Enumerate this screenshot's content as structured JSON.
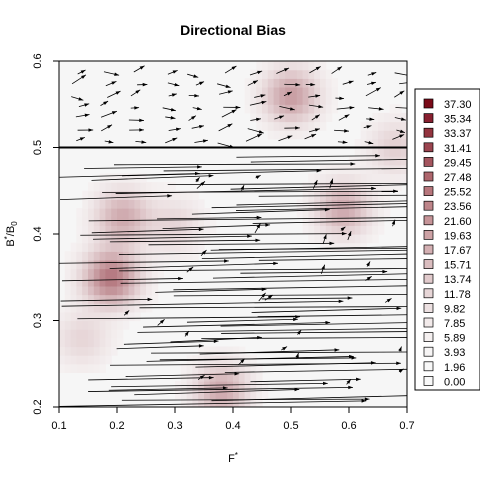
{
  "chart_data": {
    "type": "heatmap",
    "title": "Directional Bias",
    "xlabel": "F*",
    "ylabel": "B*/B0",
    "xlim": [
      0.1,
      0.7
    ],
    "ylim": [
      0.2,
      0.6
    ],
    "x_ticks": [
      "0.1",
      "0.2",
      "0.3",
      "0.4",
      "0.5",
      "0.6",
      "0.7"
    ],
    "y_ticks": [
      "0.2",
      "0.3",
      "0.4",
      "0.5",
      "0.6"
    ],
    "reference_line_y": 0.5,
    "legend": {
      "position": "right",
      "entries": [
        "37.30",
        "35.34",
        "33.37",
        "31.41",
        "29.45",
        "27.48",
        "25.52",
        "23.56",
        "21.60",
        "19.63",
        "17.67",
        "15.71",
        "13.74",
        "11.78",
        "9.82",
        "7.85",
        "5.89",
        "3.93",
        "1.96",
        "0.00"
      ],
      "colors": [
        "#7a0a18",
        "#882030",
        "#93343f",
        "#9b4550",
        "#a4555e",
        "#ae666d",
        "#b7767c",
        "#be858a",
        "#c69498",
        "#cda2a5",
        "#d4b0b3",
        "#dabdbf",
        "#e1cacc",
        "#e7d6d7",
        "#ede1e2",
        "#f2eaea",
        "#f5f0f0",
        "#f7f5f5",
        "#f8f8f8",
        "#f9f9f9"
      ]
    },
    "hotspots": [
      {
        "x": 0.19,
        "y": 0.35,
        "value": 20
      },
      {
        "x": 0.21,
        "y": 0.42,
        "value": 12
      },
      {
        "x": 0.38,
        "y": 0.22,
        "value": 12
      },
      {
        "x": 0.5,
        "y": 0.56,
        "value": 14
      },
      {
        "x": 0.59,
        "y": 0.43,
        "value": 12
      },
      {
        "x": 0.68,
        "y": 0.5,
        "value": 6
      },
      {
        "x": 0.14,
        "y": 0.28,
        "value": 5
      },
      {
        "x": 0.3,
        "y": 0.41,
        "value": 5
      }
    ],
    "vector_field": {
      "upper_region": {
        "y_range": [
          0.5,
          0.6
        ],
        "arrow_style": "short",
        "direction": "right, slight downward"
      },
      "lower_region": {
        "y_range": [
          0.2,
          0.5
        ],
        "arrow_style": "long streaks",
        "direction": "right, slight upward"
      }
    }
  }
}
